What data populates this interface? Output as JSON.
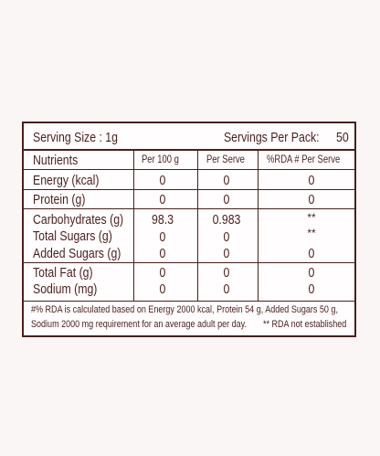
{
  "serving": {
    "size_label": "Serving Size : 1g",
    "per_pack_label": "Servings Per Pack:",
    "per_pack_value": "50"
  },
  "header": {
    "nutrients": "Nutrients",
    "per100": "Per 100 g",
    "perserve": "Per Serve",
    "rda": "%RDA # Per Serve"
  },
  "rows": [
    {
      "name": "Energy (kcal)",
      "per100": "0",
      "perserve": "0",
      "rda": "0"
    },
    {
      "name": "Protein (g)",
      "per100": "0",
      "perserve": "0",
      "rda": "0"
    },
    {
      "name": "Carbohydrates (g)",
      "per100": "98.3",
      "perserve": "0.983",
      "rda": "**"
    },
    {
      "name": "Total Sugars (g)",
      "per100": "0",
      "perserve": "0",
      "rda": "**"
    },
    {
      "name": "Added Sugars (g)",
      "per100": "0",
      "perserve": "0",
      "rda": "0"
    },
    {
      "name": "Total Fat (g)",
      "per100": "0",
      "perserve": "0",
      "rda": "0"
    },
    {
      "name": "Sodium (mg)",
      "per100": "0",
      "perserve": "0",
      "rda": "0"
    }
  ],
  "footnote": {
    "line1": "#% RDA is calculated based on Energy 2000 kcal, Protein 54 g, Added Sugars 50 g,",
    "line2": "Sodium 2000 mg requirement for an average adult per day.",
    "line2_right": "** RDA not established"
  }
}
